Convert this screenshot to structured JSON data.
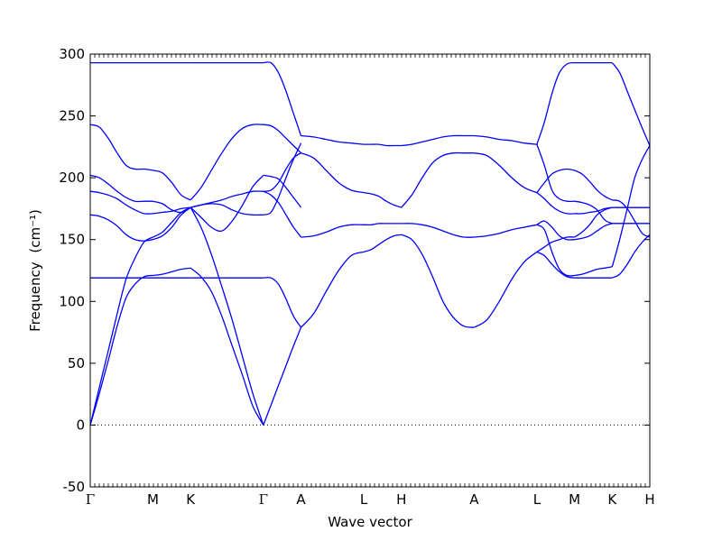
{
  "chart_data": {
    "type": "line",
    "xlabel": "Wave vector",
    "ylabel": "Frequency",
    "ylabel_unit": "(cm⁻¹)",
    "ylim": [
      -50,
      300
    ],
    "yticks": [
      -50,
      0,
      50,
      100,
      150,
      200,
      250,
      300
    ],
    "grid": false,
    "zero_line": "dotted",
    "line_color": "#0000ff",
    "path_points": [
      {
        "label": "Γ",
        "x": 0
      },
      {
        "label": "M",
        "x": 0.5
      },
      {
        "label": "K",
        "x": 0.8
      },
      {
        "label": "Γ",
        "x": 1.38
      },
      {
        "label": "A",
        "x": 1.68
      },
      {
        "label": "L",
        "x": 2.18
      },
      {
        "label": "H",
        "x": 2.48
      },
      {
        "label": "A",
        "x": 3.06
      },
      {
        "label": "L",
        "x": 3.56
      },
      {
        "label": "M",
        "x": 3.86
      },
      {
        "label": "K",
        "x": 4.16
      },
      {
        "label": "H",
        "x": 4.46
      }
    ],
    "x_range": [
      0,
      4.46
    ],
    "segments": [
      {
        "from": "Γ",
        "to": "M",
        "bands": [
          [
            293,
            293,
            293,
            293,
            293,
            293,
            293,
            293
          ],
          [
            243,
            241,
            232,
            220,
            210,
            207,
            207,
            206
          ],
          [
            202,
            200,
            195,
            189,
            184,
            181,
            181,
            181
          ],
          [
            189,
            188,
            186,
            183,
            178,
            174,
            171,
            171
          ],
          [
            170,
            169,
            166,
            161,
            154,
            150,
            149,
            150
          ],
          [
            119,
            119,
            119,
            119,
            119,
            119,
            119,
            119
          ],
          [
            0,
            30,
            60,
            90,
            118,
            135,
            148,
            152
          ],
          [
            0,
            25,
            52,
            80,
            103,
            114,
            120,
            121
          ]
        ]
      },
      {
        "from": "M",
        "to": "K",
        "bands": [
          [
            293,
            293,
            293,
            293,
            293
          ],
          [
            206,
            204,
            196,
            186,
            182
          ],
          [
            181,
            179,
            174,
            172,
            176
          ],
          [
            171,
            172,
            173,
            175,
            176
          ],
          [
            150,
            153,
            160,
            170,
            176
          ],
          [
            152,
            156,
            164,
            172,
            176
          ],
          [
            119,
            119,
            119,
            119,
            119
          ],
          [
            121,
            122,
            124,
            126,
            127
          ]
        ]
      },
      {
        "from": "K",
        "to": "Γ",
        "bands": [
          [
            293,
            293,
            293,
            293,
            293,
            293,
            293,
            293
          ],
          [
            182,
            192,
            206,
            220,
            232,
            240,
            243,
            243
          ],
          [
            176,
            178,
            180,
            182,
            185,
            187,
            189,
            189
          ],
          [
            176,
            168,
            160,
            157,
            165,
            178,
            193,
            202
          ],
          [
            176,
            178,
            179,
            178,
            174,
            171,
            170,
            170
          ],
          [
            176,
            160,
            138,
            112,
            85,
            55,
            25,
            0
          ],
          [
            127,
            120,
            108,
            88,
            64,
            40,
            15,
            0
          ],
          [
            119,
            119,
            119,
            119,
            119,
            119,
            119,
            119
          ]
        ]
      },
      {
        "from": "Γ",
        "to": "A",
        "bands": [
          [
            293,
            293,
            285,
            270,
            252,
            234
          ],
          [
            243,
            242,
            238,
            232,
            226,
            220
          ],
          [
            202,
            201,
            199,
            192,
            184,
            176
          ],
          [
            189,
            190,
            196,
            207,
            216,
            220
          ],
          [
            170,
            172,
            184,
            200,
            215,
            228
          ],
          [
            189,
            186,
            180,
            170,
            160,
            152
          ],
          [
            119,
            119,
            114,
            102,
            88,
            79
          ],
          [
            0,
            16,
            32,
            48,
            64,
            79
          ]
        ]
      },
      {
        "from": "A",
        "to": "L",
        "bands": [
          [
            234,
            233,
            231,
            229,
            228,
            227
          ],
          [
            220,
            216,
            206,
            196,
            190,
            188
          ],
          [
            152,
            153,
            156,
            160,
            162,
            162
          ],
          [
            79,
            90,
            108,
            125,
            137,
            140
          ]
        ]
      },
      {
        "from": "L",
        "to": "H",
        "bands": [
          [
            227,
            227,
            227,
            226,
            226,
            226
          ],
          [
            188,
            187,
            185,
            181,
            178,
            176
          ],
          [
            162,
            162,
            163,
            163,
            163,
            163
          ],
          [
            140,
            142,
            146,
            150,
            153,
            154
          ]
        ]
      },
      {
        "from": "H",
        "to": "A",
        "bands": [
          [
            226,
            227,
            229,
            231,
            233,
            234,
            234,
            234
          ],
          [
            176,
            186,
            200,
            212,
            218,
            220,
            220,
            220
          ],
          [
            163,
            163,
            162,
            160,
            157,
            154,
            152,
            152
          ],
          [
            154,
            150,
            138,
            120,
            100,
            87,
            80,
            79
          ]
        ]
      },
      {
        "from": "A",
        "to": "L",
        "bands": [
          [
            234,
            233,
            231,
            230,
            228,
            227
          ],
          [
            220,
            218,
            210,
            200,
            192,
            188
          ],
          [
            152,
            153,
            155,
            158,
            160,
            162
          ],
          [
            79,
            85,
            100,
            118,
            132,
            140
          ]
        ]
      },
      {
        "from": "L",
        "to": "M",
        "bands": [
          [
            227,
            245,
            268,
            285,
            292,
            293
          ],
          [
            227,
            210,
            190,
            183,
            181,
            181
          ],
          [
            188,
            196,
            203,
            206,
            207,
            206
          ],
          [
            188,
            183,
            177,
            173,
            171,
            171
          ],
          [
            162,
            165,
            160,
            153,
            150,
            150
          ],
          [
            162,
            158,
            140,
            126,
            121,
            121
          ],
          [
            140,
            137,
            130,
            124,
            120,
            119
          ],
          [
            140,
            144,
            148,
            150,
            152,
            152
          ]
        ]
      },
      {
        "from": "M",
        "to": "K",
        "bands": [
          [
            293,
            293,
            293,
            293,
            293,
            293
          ],
          [
            206,
            203,
            197,
            190,
            185,
            182
          ],
          [
            181,
            180,
            178,
            174,
            166,
            163
          ],
          [
            171,
            171,
            172,
            173,
            175,
            176
          ],
          [
            150,
            151,
            153,
            157,
            161,
            163
          ],
          [
            152,
            156,
            162,
            170,
            174,
            176
          ],
          [
            121,
            122,
            124,
            126,
            127,
            128
          ],
          [
            119,
            119,
            119,
            119,
            119,
            119
          ]
        ]
      },
      {
        "from": "K",
        "to": "H",
        "bands": [
          [
            293,
            285,
            270,
            255,
            240,
            226
          ],
          [
            182,
            181,
            175,
            165,
            155,
            152
          ],
          [
            163,
            163,
            163,
            163,
            163,
            163
          ],
          [
            176,
            176,
            176,
            176,
            176,
            176
          ],
          [
            163,
            163,
            163,
            163,
            163,
            163
          ],
          [
            176,
            176,
            176,
            176,
            176,
            176
          ],
          [
            128,
            150,
            175,
            200,
            215,
            226
          ],
          [
            119,
            122,
            130,
            140,
            148,
            154
          ]
        ]
      }
    ]
  }
}
